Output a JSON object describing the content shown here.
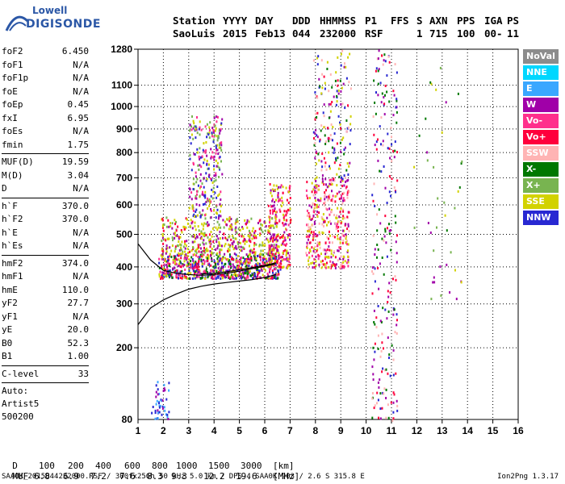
{
  "logo": {
    "line1": "Lowell",
    "line2": "DIGISONDE"
  },
  "header": {
    "station_label": "Station",
    "station": "SaoLuis",
    "yyyy_label": "YYYY",
    "yyyy": "2015",
    "day_label": "DAY",
    "day": "Feb13",
    "ddd_label": "DDD",
    "ddd": "044",
    "hhmmss_label": "HHMMSS",
    "hhmmss": "232000",
    "p1_label": "P1",
    "p1": "RSF",
    "ffs_label": "FFS",
    "ffs": "",
    "s_label": "S",
    "s": "1",
    "axn_label": "AXN",
    "axn": "715",
    "pps_label": "PPS",
    "pps": "100",
    "iga_label": "IGA",
    "iga": "00-",
    "ps_label": "PS",
    "ps": "11"
  },
  "params": {
    "group1": [
      {
        "name": "foF2",
        "value": "6.450"
      },
      {
        "name": "foF1",
        "value": "N/A"
      },
      {
        "name": "foF1p",
        "value": "N/A"
      },
      {
        "name": "foE",
        "value": "N/A"
      },
      {
        "name": "foEp",
        "value": "0.45"
      },
      {
        "name": "fxI",
        "value": "6.95"
      },
      {
        "name": "foEs",
        "value": "N/A"
      },
      {
        "name": "fmin",
        "value": "1.75"
      }
    ],
    "group2": [
      {
        "name": "MUF(D)",
        "value": "19.59"
      },
      {
        "name": "M(D)",
        "value": "3.04"
      },
      {
        "name": "D",
        "value": "N/A"
      }
    ],
    "group3": [
      {
        "name": "h`F",
        "value": "370.0"
      },
      {
        "name": "h`F2",
        "value": "370.0"
      },
      {
        "name": "h`E",
        "value": "N/A"
      },
      {
        "name": "h`Es",
        "value": "N/A"
      }
    ],
    "group4": [
      {
        "name": "hmF2",
        "value": "374.0"
      },
      {
        "name": "hmF1",
        "value": "N/A"
      },
      {
        "name": "hmE",
        "value": "110.0"
      },
      {
        "name": "yF2",
        "value": "27.7"
      },
      {
        "name": "yF1",
        "value": "N/A"
      },
      {
        "name": "yE",
        "value": "20.0"
      },
      {
        "name": "B0",
        "value": "52.3"
      },
      {
        "name": "B1",
        "value": "1.00"
      }
    ],
    "group5": [
      {
        "name": "C-level",
        "value": "33"
      }
    ],
    "auto": [
      "Auto:",
      "Artist5",
      "500200"
    ]
  },
  "legend": [
    {
      "label": "NoVal",
      "color": "#8c8c8c"
    },
    {
      "label": "NNE",
      "color": "#00d7ff"
    },
    {
      "label": "E",
      "color": "#3aa7ff"
    },
    {
      "label": "W",
      "color": "#a000a8"
    },
    {
      "label": "Vo-",
      "color": "#ff2f8c"
    },
    {
      "label": "Vo+",
      "color": "#ff003c"
    },
    {
      "label": "SSW",
      "color": "#ffb4b4"
    },
    {
      "label": "X-",
      "color": "#007800"
    },
    {
      "label": "X+",
      "color": "#78b450"
    },
    {
      "label": "SSE",
      "color": "#d2d200"
    },
    {
      "label": "NNW",
      "color": "#2828d2"
    }
  ],
  "bottom": {
    "d_label": "D",
    "d_values": [
      "100",
      "200",
      "400",
      "600",
      "800",
      "1000",
      "1500",
      "3000"
    ],
    "d_unit": "[km]",
    "muf_label": "MUF",
    "muf_values": [
      "6.8",
      "6.9",
      "7.2",
      "7.6",
      "8.3",
      "9.3",
      "12.2",
      "19.6"
    ],
    "muf_unit": "[MHz]"
  },
  "footer": "SAA0K_2015044232000.RSF / 300fx256h 50 kHz 5.0 km / DPS-4 SAA0K 903 / 2.6 S 315.8 E",
  "version": "Ion2Png 1.3.17",
  "chart_data": {
    "type": "scatter",
    "x_ticks": [
      1,
      2,
      3,
      4,
      5,
      6,
      7,
      8,
      9,
      10,
      11,
      12,
      13,
      14,
      15,
      16
    ],
    "y_ticks": [
      200,
      300,
      400,
      500,
      600,
      700,
      800,
      900,
      1000,
      1100,
      1280
    ],
    "xlim": [
      1,
      16
    ],
    "ylim": [
      80,
      1280
    ],
    "y_scale": "non-linear (sqrt-like)",
    "grid": true,
    "curves": [
      {
        "name": "profile",
        "x": [
          1.0,
          1.5,
          2.0,
          2.5,
          3.0,
          3.5,
          4.0,
          4.5,
          5.0,
          5.5,
          6.0,
          6.45
        ],
        "y": [
          250,
          290,
          310,
          325,
          338,
          346,
          352,
          356,
          360,
          364,
          370,
          378
        ]
      },
      {
        "name": "trace",
        "x": [
          1.0,
          1.5,
          2.0,
          2.5,
          3.0,
          3.5,
          4.0,
          4.5,
          5.0,
          5.5,
          6.0,
          6.4
        ],
        "y": [
          470,
          420,
          390,
          382,
          378,
          376,
          378,
          382,
          388,
          395,
          402,
          408
        ]
      },
      {
        "name": "trace2",
        "x": [
          3.5,
          4.0,
          4.5,
          5.0,
          5.5,
          6.0,
          6.45
        ],
        "y": [
          380,
          382,
          386,
          392,
          398,
          405,
          412
        ]
      }
    ],
    "echo_clusters": [
      {
        "x0": 1.8,
        "x1": 6.6,
        "y0": 370,
        "y1": 440,
        "colors": [
          "Vo+",
          "Vo-",
          "W",
          "SSE",
          "NNW",
          "X-"
        ],
        "n": 700
      },
      {
        "x0": 1.9,
        "x1": 6.5,
        "y0": 440,
        "y1": 560,
        "colors": [
          "SSE",
          "SSE",
          "X+",
          "Vo+",
          "W"
        ],
        "n": 420
      },
      {
        "x0": 3.0,
        "x1": 4.3,
        "y0": 560,
        "y1": 960,
        "colors": [
          "SSE",
          "W",
          "NNW",
          "Vo-",
          "X+"
        ],
        "n": 260
      },
      {
        "x0": 6.1,
        "x1": 7.0,
        "y0": 400,
        "y1": 680,
        "colors": [
          "Vo+",
          "SSE",
          "Vo-",
          "W"
        ],
        "n": 220
      },
      {
        "x0": 7.6,
        "x1": 9.3,
        "y0": 400,
        "y1": 700,
        "colors": [
          "Vo+",
          "SSE",
          "Vo-",
          "W",
          "SSW"
        ],
        "n": 380
      },
      {
        "x0": 7.9,
        "x1": 9.4,
        "y0": 700,
        "y1": 1280,
        "colors": [
          "W",
          "SSW",
          "Vo+",
          "NNW",
          "X-",
          "SSE"
        ],
        "n": 160
      },
      {
        "x0": 10.2,
        "x1": 11.2,
        "y0": 80,
        "y1": 1280,
        "colors": [
          "W",
          "NNW",
          "Vo+",
          "X-",
          "SSW"
        ],
        "n": 220
      },
      {
        "x0": 11.8,
        "x1": 13.8,
        "y0": 300,
        "y1": 1200,
        "colors": [
          "X-",
          "X+",
          "SSE",
          "W"
        ],
        "n": 40
      },
      {
        "x0": 1.5,
        "x1": 2.2,
        "y0": 80,
        "y1": 140,
        "colors": [
          "NNW",
          "W",
          "E"
        ],
        "n": 45
      }
    ]
  }
}
